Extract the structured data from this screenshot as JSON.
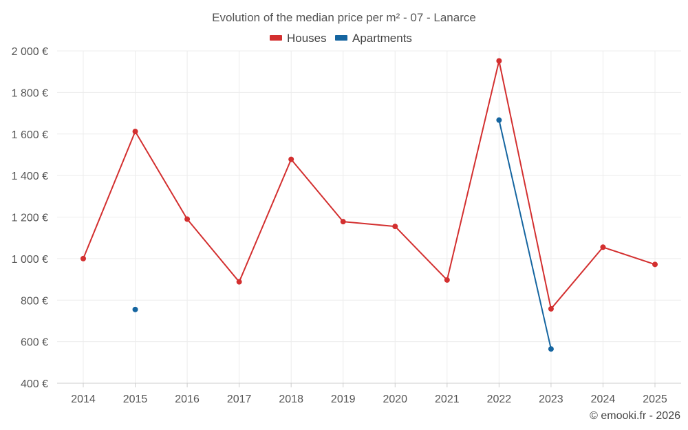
{
  "chart_data": {
    "type": "line",
    "title": "Evolution of the median price per m² - 07 - Lanarce",
    "categories": [
      "2014",
      "2015",
      "2016",
      "2017",
      "2018",
      "2019",
      "2020",
      "2021",
      "2022",
      "2023",
      "2024",
      "2025"
    ],
    "ylim": [
      400,
      2000
    ],
    "yticks": [
      400,
      600,
      800,
      1000,
      1200,
      1400,
      1600,
      1800,
      2000
    ],
    "ytick_labels": [
      "400 €",
      "600 €",
      "800 €",
      "1 000 €",
      "1 200 €",
      "1 400 €",
      "1 600 €",
      "1 800 €",
      "2 000 €"
    ],
    "series": [
      {
        "name": "Houses",
        "color": "#d32f2f",
        "values": [
          1000,
          1612,
          1190,
          888,
          1478,
          1178,
          1155,
          897,
          1952,
          758,
          1055,
          972
        ]
      },
      {
        "name": "Apartments",
        "color": "#1565a0",
        "values": [
          null,
          755,
          null,
          null,
          null,
          null,
          null,
          null,
          1667,
          565,
          null,
          null
        ]
      }
    ],
    "xlabel": "",
    "ylabel": "",
    "grid": true,
    "legend_position": "top-center"
  },
  "credit": "© emooki.fr - 2026"
}
